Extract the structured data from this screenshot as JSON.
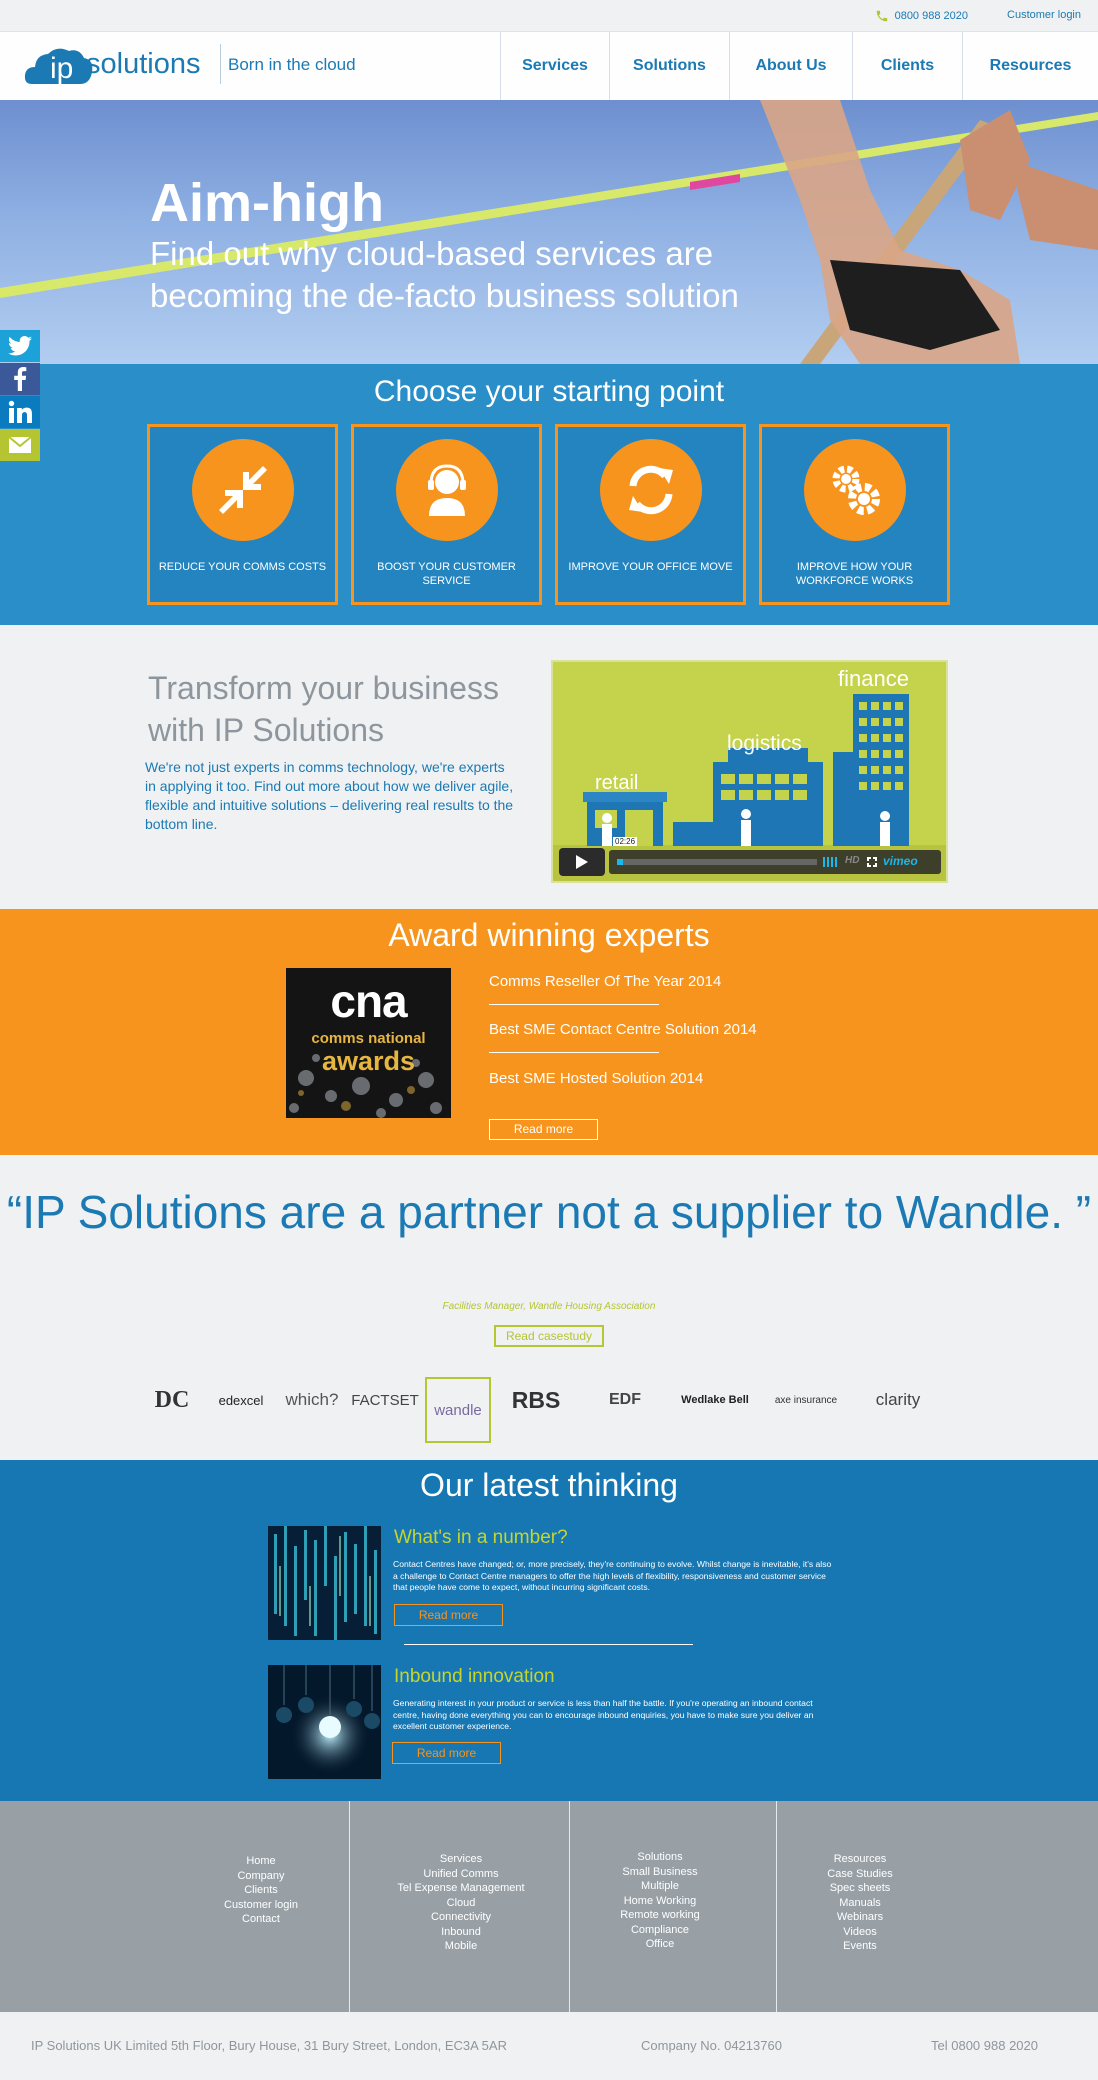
{
  "topbar": {
    "phone": "0800 988 2020",
    "customer_login": "Customer login"
  },
  "header": {
    "logo_text": "ipsolutions",
    "tagline": "Born in the cloud",
    "nav": [
      "Services",
      "Solutions",
      "About Us",
      "Clients",
      "Resources"
    ]
  },
  "hero": {
    "title": "Aim-high",
    "subtitle": "Find out why cloud-based services are becoming the de-facto business solution"
  },
  "social": [
    {
      "icon": "twitter-icon",
      "color": "#1da1d9"
    },
    {
      "icon": "facebook-icon",
      "color": "#3b5998"
    },
    {
      "icon": "linkedin-icon",
      "color": "#0b7bc0"
    },
    {
      "icon": "email-icon",
      "color": "#b5c531"
    }
  ],
  "starting_point": {
    "title": "Choose your starting point",
    "cards": [
      {
        "label": "REDUCE YOUR COMMS COSTS",
        "icon": "compress-arrows-icon"
      },
      {
        "label": "BOOST YOUR CUSTOMER SERVICE",
        "icon": "headset-agent-icon"
      },
      {
        "label": "IMPROVE YOUR OFFICE MOVE",
        "icon": "refresh-icon"
      },
      {
        "label": "IMPROVE HOW YOUR WORKFORCE WORKS",
        "icon": "gears-icon"
      }
    ]
  },
  "transform": {
    "title": "Transform your business with IP Solutions",
    "text": "We're not just experts in comms technology, we're experts in applying it too. Find out more about how we deliver agile, flexible and intuitive solutions – delivering real results to the bottom line.",
    "video": {
      "labels": [
        "finance",
        "logistics",
        "retail"
      ],
      "time": "02:26",
      "hd": "HD",
      "brand": "vimeo"
    }
  },
  "awards": {
    "title": "Award winning experts",
    "image_text": [
      "cna",
      "comms national",
      "awards"
    ],
    "items": [
      "Comms Reseller Of The Year 2014",
      "Best SME Contact Centre Solution 2014",
      "Best SME Hosted Solution 2014"
    ],
    "button": "Read more"
  },
  "testimonial": {
    "quote": "“IP Solutions are a partner not a supplier to Wandle. ”",
    "attribution": "Facilities Manager, Wandle Housing Association",
    "button": "Read casestudy"
  },
  "client_logos": [
    "DC",
    "edexcel",
    "which?",
    "FACTSET",
    "wandle",
    "RBS",
    "EDF",
    "Wedlake Bell",
    "axe insurance",
    "clarity"
  ],
  "thinking": {
    "title": "Our latest thinking",
    "articles": [
      {
        "title": "What's in a number?",
        "text": "Contact Centres have changed; or, more precisely, they're continuing to evolve. Whilst change is inevitable, it's also a challenge to Contact Centre managers to offer the high levels of flexibility, responsiveness and customer service that people have come to expect, without incurring significant costs.",
        "button": "Read more"
      },
      {
        "title": "Inbound innovation",
        "text": "Generating interest in your product or service is less than half the battle. If you're operating an inbound contact centre, having done everything you can to encourage inbound enquiries, you have to make sure you deliver an excellent customer experience.",
        "button": "Read more"
      }
    ]
  },
  "footer": {
    "columns": [
      [
        "Home",
        "Company",
        "Clients",
        "Customer login",
        "Contact"
      ],
      [
        "Services",
        "Unified Comms",
        "Tel Expense Management",
        "Cloud",
        "Connectivity",
        "Inbound",
        "Mobile"
      ],
      [
        "Solutions",
        "Small Business",
        "Multiple",
        "Home Working",
        "Remote working",
        "Compliance",
        "Office"
      ],
      [
        "Resources",
        "Case Studies",
        "Spec sheets",
        "Manuals",
        "Webinars",
        "Videos",
        "Events"
      ]
    ],
    "address": "IP Solutions UK Limited 5th Floor, Bury House, 31 Bury Street, London, EC3A 5AR",
    "company_no": "Company No. 04213760",
    "tel": "Tel 0800 988 2020"
  },
  "colors": {
    "brand_blue": "#1b7ab3",
    "orange": "#f7941d",
    "lime": "#b6c532",
    "grey": "#98a0a6"
  }
}
